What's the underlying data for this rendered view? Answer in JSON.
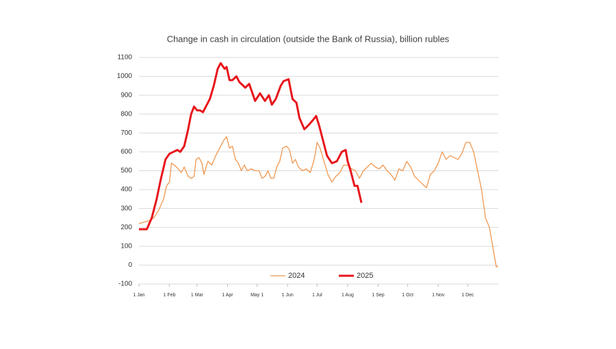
{
  "chart_data": {
    "type": "line",
    "title": "Change in cash in circulation (outside the Bank of Russia), billion rubles",
    "xlim": [
      0,
      365
    ],
    "xticks": [
      {
        "value": 0,
        "label": "1 Jan"
      },
      {
        "value": 31,
        "label": "1 Feb"
      },
      {
        "value": 59,
        "label": "1 Mar"
      },
      {
        "value": 90,
        "label": "1 Apr"
      },
      {
        "value": 120,
        "label": "May 1"
      },
      {
        "value": 151,
        "label": "1 Jun"
      },
      {
        "value": 181,
        "label": "1 Jul"
      },
      {
        "value": 212,
        "label": "1 Aug"
      },
      {
        "value": 243,
        "label": "1 Sep"
      },
      {
        "value": 273,
        "label": "1 Oct"
      },
      {
        "value": 304,
        "label": "1 Nov"
      },
      {
        "value": 334,
        "label": "1 Dec"
      }
    ],
    "ylim": [
      -100,
      1100
    ],
    "yticks": [
      -100,
      0,
      100,
      200,
      300,
      400,
      500,
      600,
      700,
      800,
      900,
      1000,
      1100
    ],
    "grid": true,
    "legend": "bottom",
    "series": [
      {
        "name": "2024",
        "color": "#f0974f",
        "width": 1.3,
        "x": [
          0,
          10,
          15,
          20,
          25,
          28,
          31,
          33,
          36,
          40,
          43,
          46,
          50,
          53,
          56,
          58,
          61,
          64,
          66,
          70,
          74,
          78,
          82,
          86,
          89,
          92,
          95,
          98,
          101,
          104,
          107,
          110,
          114,
          118,
          122,
          125,
          128,
          131,
          134,
          137,
          140,
          143,
          146,
          150,
          153,
          156,
          159,
          162,
          166,
          170,
          174,
          178,
          181,
          184,
          188,
          192,
          196,
          200,
          204,
          208,
          212,
          216,
          220,
          224,
          228,
          232,
          236,
          240,
          244,
          248,
          252,
          256,
          260,
          264,
          268,
          272,
          276,
          280,
          284,
          288,
          292,
          296,
          300,
          304,
          308,
          312,
          316,
          320,
          324,
          328,
          332,
          336,
          340,
          344,
          348,
          352,
          356,
          360,
          363,
          365
        ],
        "values": [
          220,
          235,
          250,
          290,
          350,
          420,
          440,
          540,
          530,
          510,
          490,
          520,
          470,
          460,
          470,
          560,
          570,
          540,
          480,
          550,
          530,
          580,
          620,
          660,
          680,
          620,
          630,
          560,
          540,
          500,
          530,
          500,
          510,
          500,
          500,
          460,
          470,
          500,
          460,
          460,
          520,
          550,
          620,
          630,
          610,
          540,
          560,
          520,
          500,
          510,
          490,
          560,
          650,
          620,
          550,
          480,
          440,
          470,
          490,
          530,
          530,
          510,
          500,
          460,
          500,
          520,
          540,
          520,
          510,
          530,
          500,
          480,
          450,
          510,
          500,
          550,
          520,
          470,
          450,
          430,
          410,
          480,
          500,
          540,
          600,
          560,
          580,
          570,
          560,
          590,
          650,
          650,
          600,
          500,
          400,
          250,
          200,
          80,
          -10,
          -5
        ]
      },
      {
        "name": "2025",
        "color": "#e8141b",
        "width": 3,
        "x": [
          0,
          8,
          13,
          18,
          22,
          27,
          31,
          35,
          39,
          42,
          46,
          50,
          53,
          56,
          59,
          62,
          65,
          68,
          72,
          76,
          80,
          83,
          87,
          89,
          92,
          95,
          99,
          102,
          108,
          112,
          118,
          123,
          128,
          132,
          135,
          139,
          144,
          147,
          152,
          156,
          160,
          163,
          168,
          172,
          177,
          180,
          183,
          187,
          191,
          196,
          201,
          206,
          210,
          212,
          215,
          219,
          222,
          226
        ],
        "values": [
          190,
          190,
          250,
          350,
          450,
          560,
          590,
          600,
          610,
          600,
          630,
          720,
          800,
          840,
          820,
          820,
          810,
          840,
          880,
          950,
          1040,
          1070,
          1040,
          1050,
          980,
          980,
          1000,
          970,
          940,
          960,
          870,
          910,
          870,
          900,
          850,
          880,
          950,
          975,
          985,
          880,
          860,
          780,
          720,
          740,
          770,
          790,
          740,
          660,
          580,
          540,
          550,
          600,
          610,
          550,
          500,
          420,
          420,
          330
        ]
      }
    ]
  }
}
